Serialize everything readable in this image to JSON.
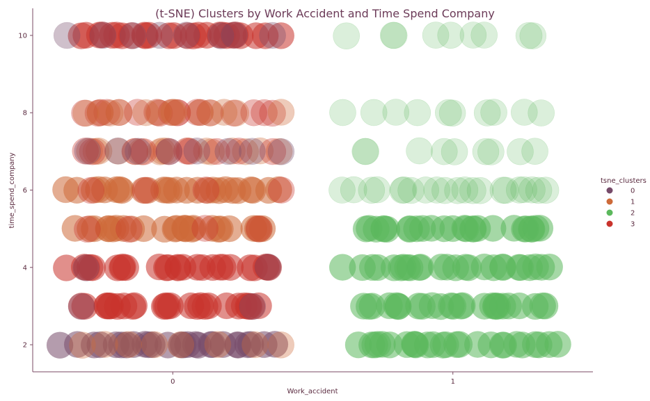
{
  "chart_data": {
    "type": "scatter",
    "title": "(t-SNE) Clusters by Work Accident and Time Spend Company",
    "xlabel": "Work_accident",
    "ylabel": "time_spend_company",
    "x_ticks": [
      "0",
      "1"
    ],
    "y_ticks": [
      "2",
      "4",
      "6",
      "8",
      "10"
    ],
    "xlim": [
      -0.5,
      1.5
    ],
    "ylim": [
      1.3,
      10.7
    ],
    "grid": false,
    "jitter": 0.45,
    "legend": {
      "title": "tsne_clusters",
      "position": "right",
      "items": [
        {
          "label": "0",
          "color": "#764b6a"
        },
        {
          "label": "1",
          "color": "#cd6a39"
        },
        {
          "label": "2",
          "color": "#5bb85c"
        },
        {
          "label": "3",
          "color": "#c9332c"
        }
      ]
    },
    "points": [
      {
        "x": 0,
        "y": 2,
        "cluster": 0,
        "weight": 1.0
      },
      {
        "x": 0,
        "y": 2,
        "cluster": 1,
        "weight": 0.3
      },
      {
        "x": 0,
        "y": 3,
        "cluster": 3,
        "weight": 1.0
      },
      {
        "x": 0,
        "y": 3,
        "cluster": 0,
        "weight": 0.05
      },
      {
        "x": 0,
        "y": 4,
        "cluster": 3,
        "weight": 1.0
      },
      {
        "x": 0,
        "y": 4,
        "cluster": 0,
        "weight": 0.08
      },
      {
        "x": 0,
        "y": 5,
        "cluster": 1,
        "weight": 1.0
      },
      {
        "x": 0,
        "y": 5,
        "cluster": 3,
        "weight": 0.15
      },
      {
        "x": 0,
        "y": 6,
        "cluster": 1,
        "weight": 1.0
      },
      {
        "x": 0,
        "y": 6,
        "cluster": 3,
        "weight": 0.15
      },
      {
        "x": 0,
        "y": 7,
        "cluster": 1,
        "weight": 0.6
      },
      {
        "x": 0,
        "y": 7,
        "cluster": 3,
        "weight": 0.4
      },
      {
        "x": 0,
        "y": 7,
        "cluster": 0,
        "weight": 0.3
      },
      {
        "x": 0,
        "y": 8,
        "cluster": 3,
        "weight": 0.7
      },
      {
        "x": 0,
        "y": 8,
        "cluster": 1,
        "weight": 0.5
      },
      {
        "x": 0,
        "y": 10,
        "cluster": 3,
        "weight": 1.0
      },
      {
        "x": 0,
        "y": 10,
        "cluster": 0,
        "weight": 0.3
      },
      {
        "x": 1,
        "y": 2,
        "cluster": 2,
        "weight": 1.0
      },
      {
        "x": 1,
        "y": 3,
        "cluster": 2,
        "weight": 1.0
      },
      {
        "x": 1,
        "y": 4,
        "cluster": 2,
        "weight": 1.0
      },
      {
        "x": 1,
        "y": 5,
        "cluster": 2,
        "weight": 1.0
      },
      {
        "x": 1,
        "y": 6,
        "cluster": 2,
        "weight": 0.8
      },
      {
        "x": 1,
        "y": 7,
        "cluster": 2,
        "weight": 0.35
      },
      {
        "x": 1,
        "y": 8,
        "cluster": 2,
        "weight": 0.4
      },
      {
        "x": 1,
        "y": 10,
        "cluster": 2,
        "weight": 0.35
      }
    ]
  }
}
